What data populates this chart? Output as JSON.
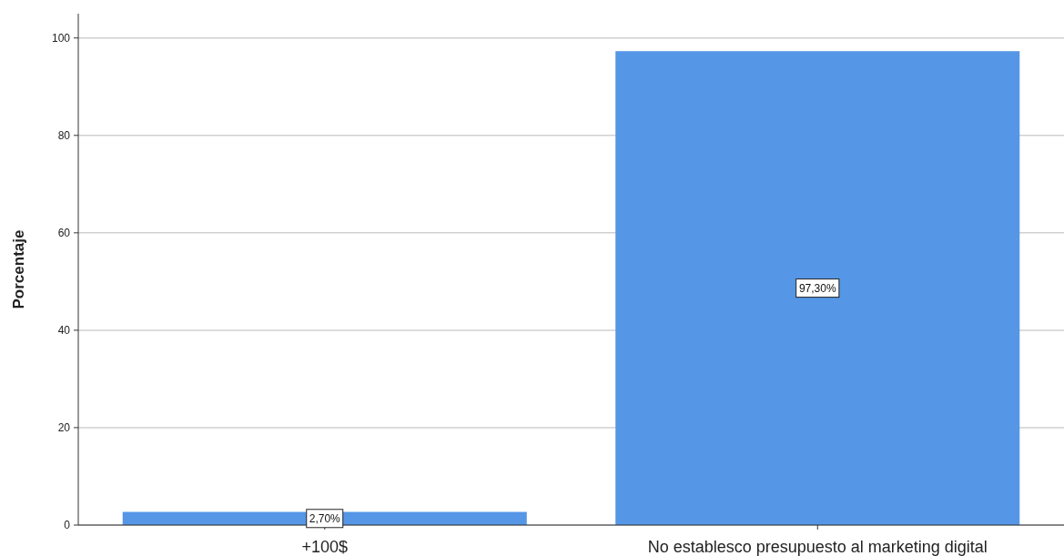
{
  "chart_data": {
    "type": "bar",
    "ylabel": "Porcentaje",
    "categories": [
      "+100$",
      "No establesco presupuesto al marketing digital"
    ],
    "values": [
      2.7,
      97.3
    ],
    "value_labels": [
      "2,70%",
      "97,30%"
    ],
    "color": "#5596e6",
    "ylim": [
      0,
      105
    ],
    "yticks": [
      0,
      20,
      40,
      60,
      80,
      100
    ],
    "grid": "y"
  }
}
